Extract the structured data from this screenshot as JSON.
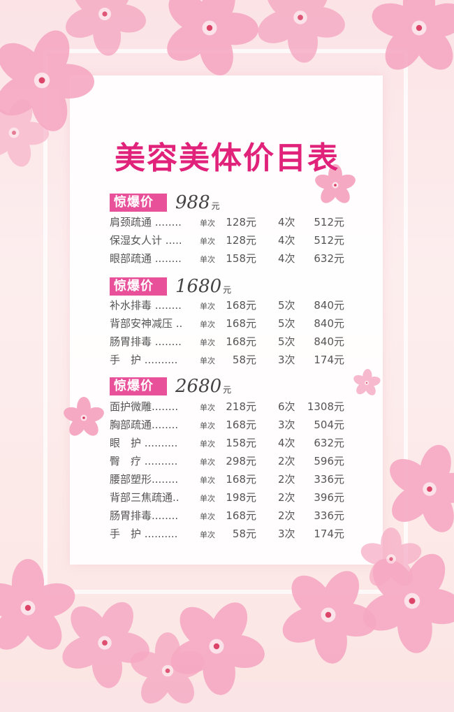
{
  "title": "美容美体价目表",
  "sections": [
    {
      "badge": "惊爆价",
      "price": "988",
      "unit": "元",
      "items": [
        {
          "name": "肩颈疏通 ........",
          "once": "单次",
          "price": "128元",
          "count": "4次",
          "total": "512元"
        },
        {
          "name": "保湿女人计 .....",
          "once": "单次",
          "price": "128元",
          "count": "4次",
          "total": "512元"
        },
        {
          "name": "眼部疏通 ........",
          "once": "单次",
          "price": "158元",
          "count": "4次",
          "total": "632元"
        }
      ]
    },
    {
      "badge": "惊爆价",
      "price": "1680",
      "unit": "元",
      "items": [
        {
          "name": "补水排毒 ........",
          "once": "单次",
          "price": "168元",
          "count": "5次",
          "total": "840元"
        },
        {
          "name": "背部安神减压 ..",
          "once": "单次",
          "price": "168元",
          "count": "5次",
          "total": "840元"
        },
        {
          "name": "肠胃排毒 ........",
          "once": "单次",
          "price": "168元",
          "count": "5次",
          "total": "840元"
        },
        {
          "name": "手　护 ..........",
          "once": "单次",
          "price": "58元",
          "count": "3次",
          "total": "174元"
        }
      ]
    },
    {
      "badge": "惊爆价",
      "price": "2680",
      "unit": "元",
      "items": [
        {
          "name": "面护微雕........",
          "once": "单次",
          "price": "218元",
          "count": "6次",
          "total": "1308元"
        },
        {
          "name": "胸部疏通........",
          "once": "单次",
          "price": "168元",
          "count": "3次",
          "total": "504元"
        },
        {
          "name": "眼　护 ..........",
          "once": "单次",
          "price": "158元",
          "count": "4次",
          "total": "632元"
        },
        {
          "name": "臀　疗 ..........",
          "once": "单次",
          "price": "298元",
          "count": "2次",
          "total": "596元"
        },
        {
          "name": "腰部塑形........",
          "once": "单次",
          "price": "168元",
          "count": "2次",
          "total": "336元"
        },
        {
          "name": "背部三焦疏通..",
          "once": "单次",
          "price": "198元",
          "count": "2次",
          "total": "396元"
        },
        {
          "name": "肠胃排毒........",
          "once": "单次",
          "price": "168元",
          "count": "2次",
          "total": "336元"
        },
        {
          "name": "手　护 ..........",
          "once": "单次",
          "price": "58元",
          "count": "3次",
          "total": "174元"
        }
      ]
    }
  ],
  "colors": {
    "accent": "#e0227a",
    "badge": "#e9509a",
    "petal": "#f6a9c3"
  }
}
